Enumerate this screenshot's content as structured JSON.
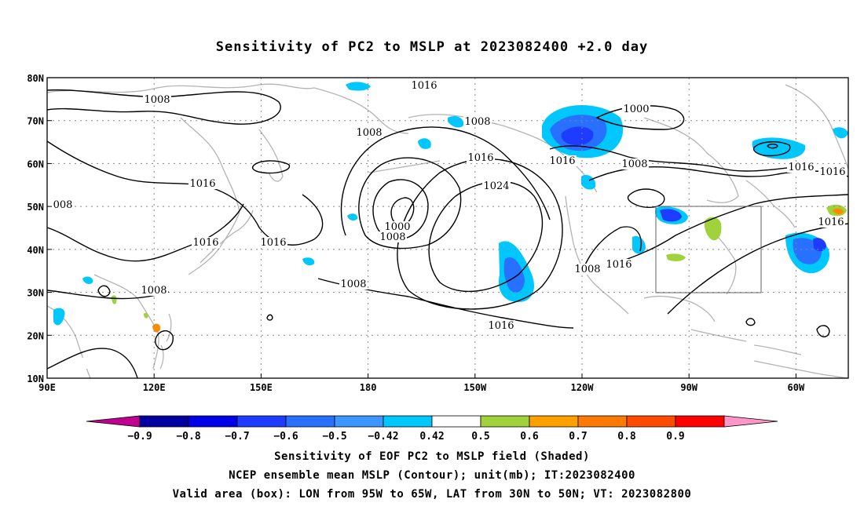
{
  "title": "Sensitivity of PC2 to MSLP at 2023082400 +2.0 day",
  "map": {
    "lat_labels": [
      "80N",
      "70N",
      "60N",
      "50N",
      "40N",
      "30N",
      "20N",
      "10N"
    ],
    "lon_labels": [
      "90E",
      "120E",
      "150E",
      "180",
      "150W",
      "120W",
      "90W",
      "60W"
    ],
    "valid_box": {
      "lon_from": "95W",
      "lon_to": "65W",
      "lat_from": "30N",
      "lat_to": "50N"
    },
    "contour_labels": [
      "1008",
      "1016",
      "1016",
      "1016",
      "1008",
      "1000",
      "1008",
      "1016",
      "1016",
      "1024",
      "1008",
      "1000",
      "1016",
      "1008",
      "1016",
      "1008",
      "1016",
      "1016",
      "1016",
      "1008",
      "1016",
      "008",
      "1008"
    ],
    "shading_colors": {
      "strong_negative": "#0000c8",
      "negative": "#1e3cff",
      "moderate_negative": "#2870ff",
      "weak_negative": "#00c8ff",
      "weak_positive": "#a0d23c",
      "positive": "#ff8c00",
      "strong_positive": "#ff0000"
    },
    "coastline_color": "#b4b4b4"
  },
  "colorbar": {
    "labels": [
      "-0.9",
      "-0.8",
      "-0.7",
      "-0.6",
      "-0.5",
      "-0.42",
      "0.42",
      "0.5",
      "0.6",
      "0.7",
      "0.8",
      "0.9"
    ],
    "colors": [
      "#c00090",
      "#0000a0",
      "#0000e6",
      "#1e3cff",
      "#2870ff",
      "#3c96ff",
      "#00c8ff",
      "#ffffff",
      "#a0d23c",
      "#ffa000",
      "#ff7800",
      "#ff4b00",
      "#ff0000",
      "#ff96c8"
    ]
  },
  "captions": [
    "Sensitivity of EOF PC2 to MSLP field (Shaded)",
    "NCEP ensemble mean MSLP (Contour); unit(mb); IT:2023082400",
    "Valid area (box): LON from 95W to 65W, LAT from 30N to 50N; VT: 2023082800"
  ]
}
